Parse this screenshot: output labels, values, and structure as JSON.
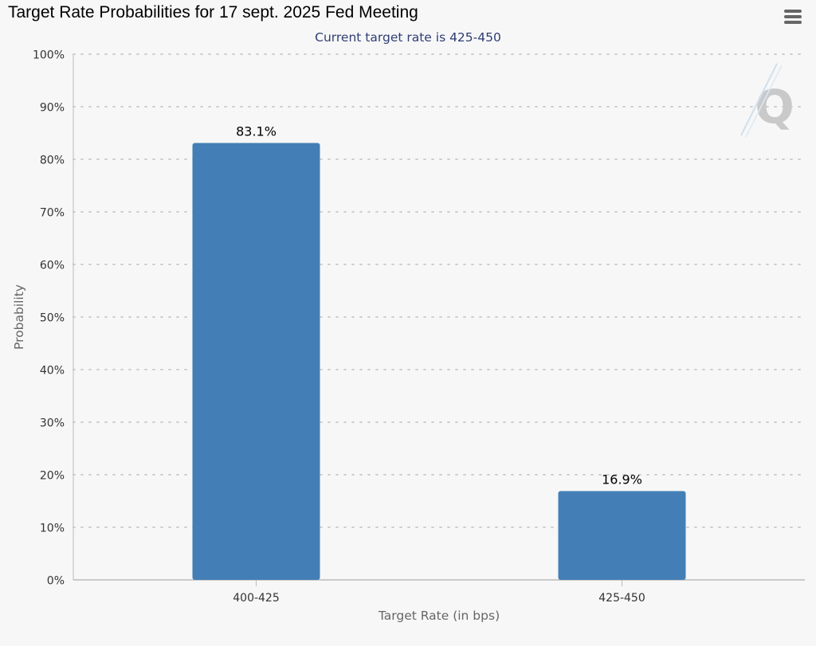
{
  "chart_data": {
    "type": "bar",
    "title": "Target Rate Probabilities for 17 sept. 2025 Fed Meeting",
    "subtitle": "Current target rate is 425-450",
    "categories": [
      "400-425",
      "425-450"
    ],
    "values": [
      83.1,
      16.9
    ],
    "data_labels": [
      "83.1%",
      "16.9%"
    ],
    "xlabel": "Target Rate (in bps)",
    "ylabel": "Probability",
    "ylim": [
      0,
      100
    ],
    "yticks": [
      0,
      10,
      20,
      30,
      40,
      50,
      60,
      70,
      80,
      90,
      100
    ],
    "ytick_labels": [
      "0%",
      "10%",
      "20%",
      "30%",
      "40%",
      "50%",
      "60%",
      "70%",
      "80%",
      "90%",
      "100%"
    ],
    "grid": true,
    "legend": "none",
    "bar_color": "#437fb6"
  },
  "toolbar": {
    "menu_icon": "hamburger-menu-icon"
  },
  "watermark": {
    "icon": "q-logo-icon"
  }
}
